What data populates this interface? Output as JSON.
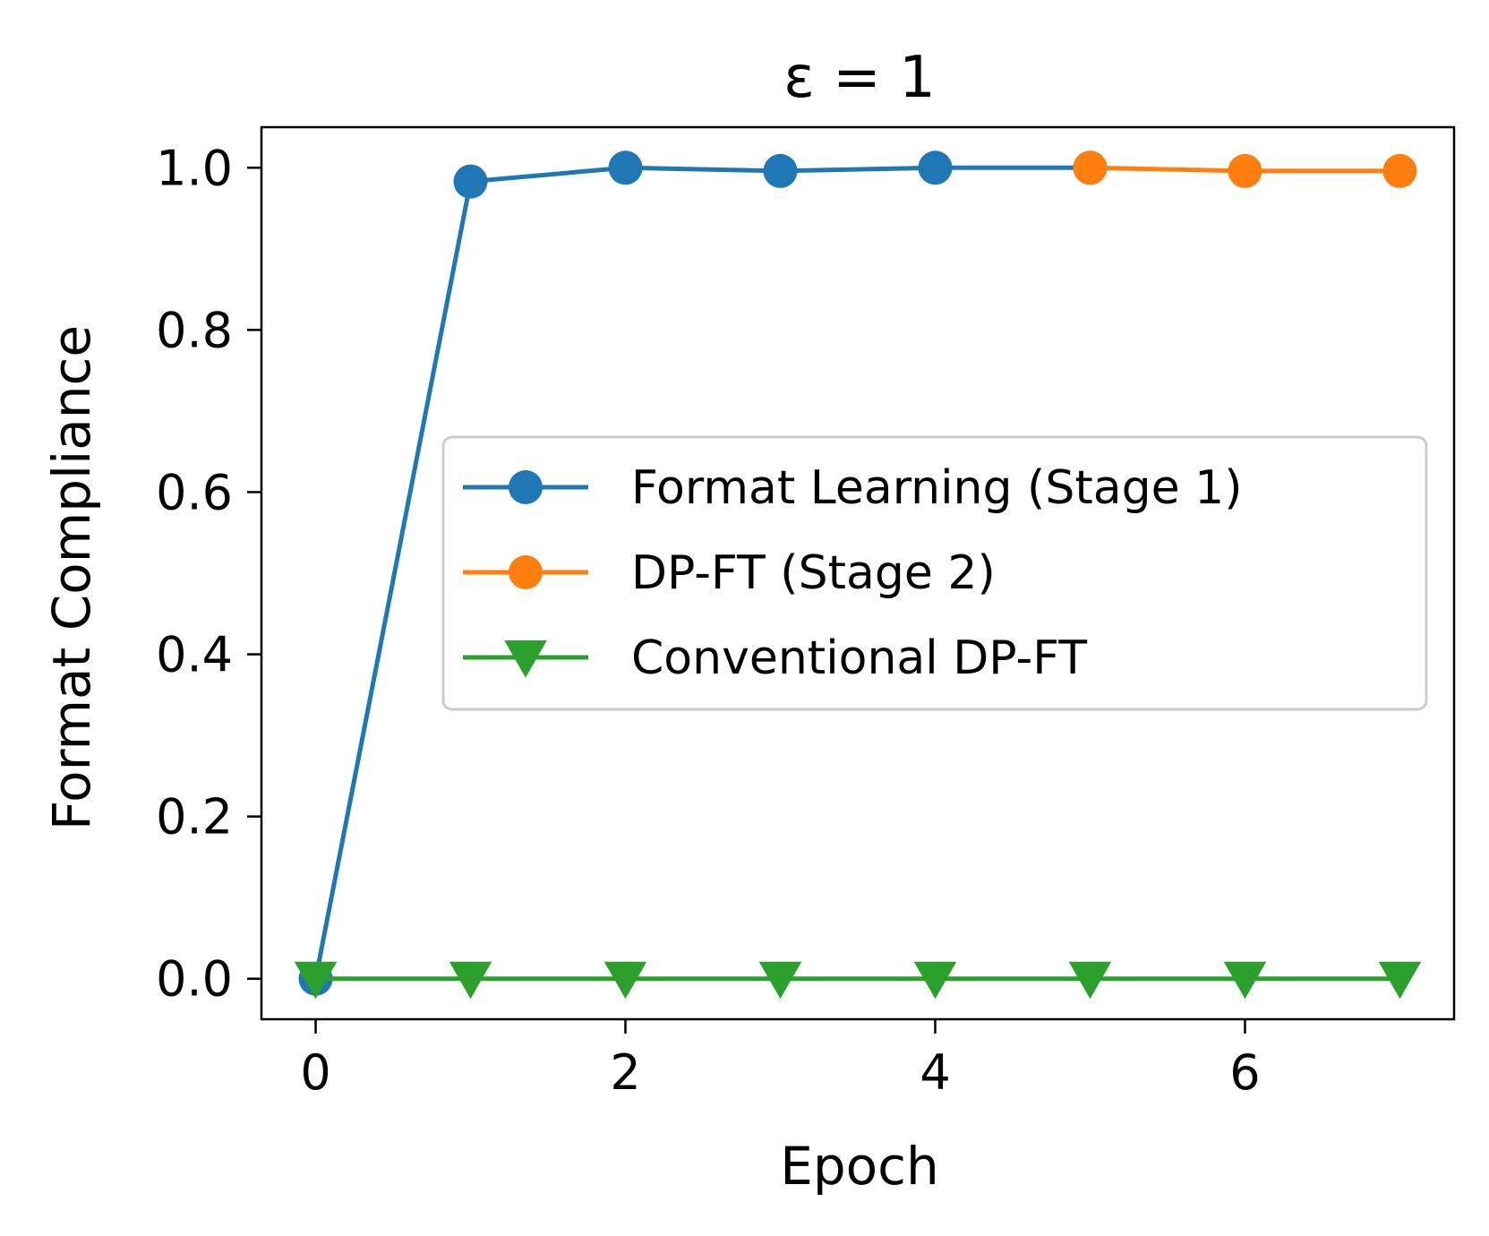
{
  "chart_data": {
    "type": "line",
    "title": "ε = 1",
    "xlabel": "Epoch",
    "ylabel": "Format Compliance",
    "xlim": [
      -0.35,
      7.35
    ],
    "ylim": [
      -0.05,
      1.05
    ],
    "xticks": [
      0,
      2,
      4,
      6
    ],
    "xtick_labels": [
      "0",
      "2",
      "4",
      "6"
    ],
    "yticks": [
      0.0,
      0.2,
      0.4,
      0.6,
      0.8,
      1.0
    ],
    "ytick_labels": [
      "0.0",
      "0.2",
      "0.4",
      "0.6",
      "0.8",
      "1.0"
    ],
    "grid": false,
    "legend_position": "center-right",
    "series": [
      {
        "name": "Format Learning (Stage 1)",
        "color": "#1f77b4",
        "marker": "circle",
        "x": [
          0,
          1,
          2,
          3,
          4,
          5
        ],
        "y": [
          0.0,
          0.983,
          1.0,
          0.996,
          1.0,
          1.0
        ]
      },
      {
        "name": "DP-FT (Stage 2)",
        "color": "#ff7f0e",
        "marker": "circle",
        "x": [
          5,
          6,
          7
        ],
        "y": [
          1.0,
          0.996,
          0.996
        ]
      },
      {
        "name": "Conventional DP-FT",
        "color": "#2ca02c",
        "marker": "triangle-down",
        "x": [
          0,
          1,
          2,
          3,
          4,
          5,
          6,
          7
        ],
        "y": [
          0.0,
          0.0,
          0.0,
          0.0,
          0.0,
          0.0,
          0.0,
          0.0
        ]
      }
    ]
  }
}
